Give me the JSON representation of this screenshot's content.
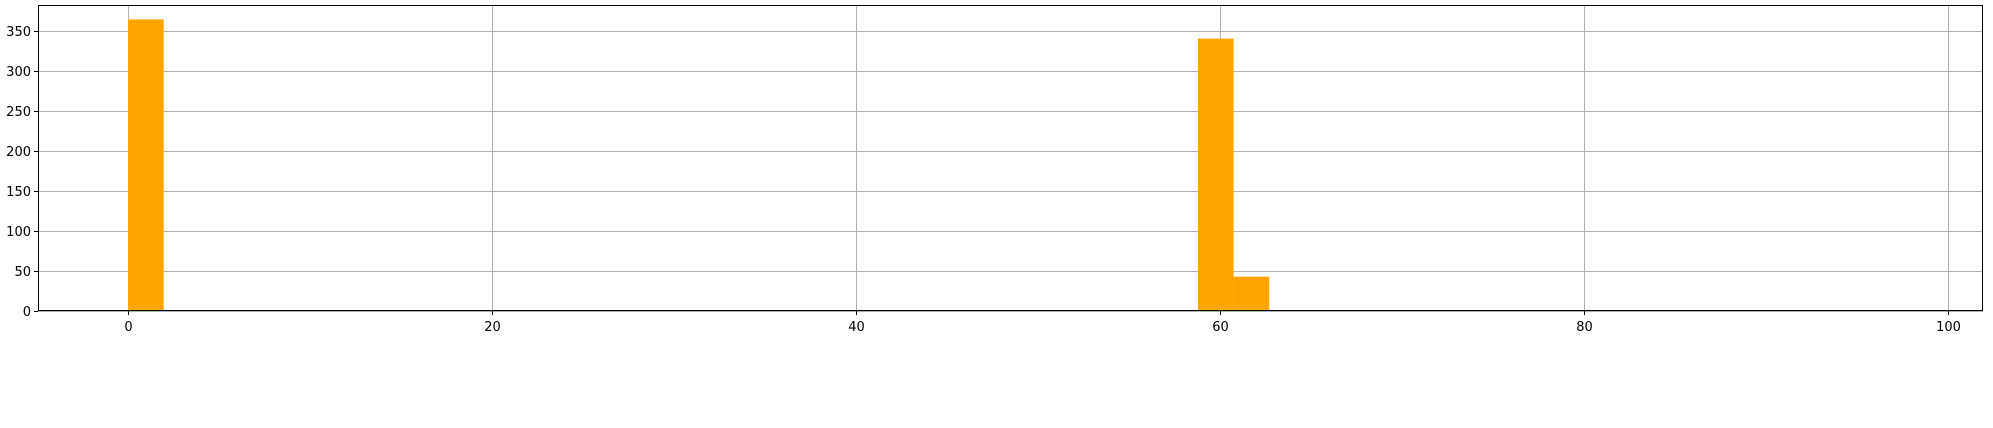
{
  "chart_data": {
    "type": "bar",
    "title": "",
    "xlabel": "",
    "ylabel": "",
    "grid": true,
    "bar_color": "#ffa500",
    "xlim": [
      -4.95,
      101.95
    ],
    "ylim": [
      0,
      383
    ],
    "x_ticks": [
      0,
      20,
      40,
      60,
      80,
      100
    ],
    "y_ticks": [
      0,
      50,
      100,
      150,
      200,
      250,
      300,
      350
    ],
    "bin_width": 1.96,
    "bins": [
      {
        "x0": 0.0,
        "count": 365
      },
      {
        "x0": 7.84,
        "count": 1
      },
      {
        "x0": 50.96,
        "count": 1
      },
      {
        "x0": 56.84,
        "count": 1
      },
      {
        "x0": 58.8,
        "count": 341
      },
      {
        "x0": 60.76,
        "count": 43
      },
      {
        "x0": 66.64,
        "count": 1
      },
      {
        "x0": 96.04,
        "count": 1
      }
    ]
  }
}
